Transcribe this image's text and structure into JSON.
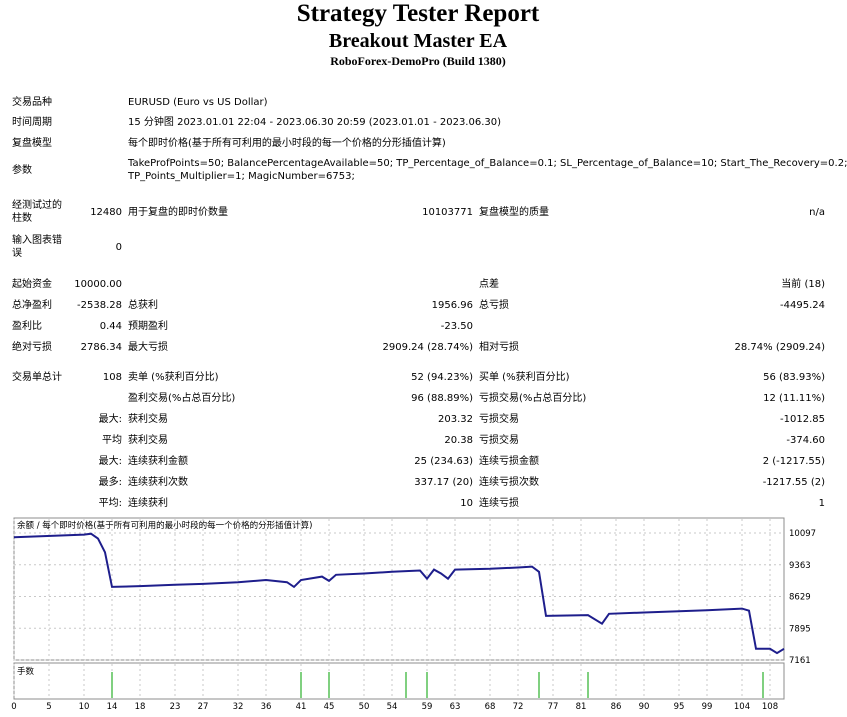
{
  "header": {
    "title": "Strategy Tester Report",
    "ea_name": "Breakout Master EA",
    "server": "RoboForex-DemoPro (Build 1380)"
  },
  "info": {
    "symbol_label": "交易品种",
    "symbol_value": "EURUSD (Euro vs US Dollar)",
    "period_label": "时间周期",
    "period_value": "15 分钟图 2023.01.01 22:04 - 2023.06.30 20:59 (2023.01.01 - 2023.06.30)",
    "model_label": "复盘模型",
    "model_value": "每个即时价格(基于所有可利用的最小时段的每一个价格的分形插值计算)",
    "params_label": "参数",
    "params_line1": "TakeProfPoints=50; BalancePercentageAvailable=50; TP_Percentage_of_Balance=0.1; SL_Percentage_of_Balance=10; Start_The_Recovery=0.2;",
    "params_line2": "TP_Points_Multiplier=1; MagicNumber=6753;"
  },
  "quality": {
    "bars_label_1": "经测试过的",
    "bars_label_2": "柱数",
    "bars_value": "12480",
    "ticks_label": "用于复盘的即时价数量",
    "ticks_value": "10103771",
    "quality_label": "复盘模型的质量",
    "quality_value": "n/a",
    "errors_label_1": "输入图表错",
    "errors_label_2": "误",
    "errors_value": "0"
  },
  "results": {
    "deposit_label": "起始资金",
    "deposit_value": "10000.00",
    "spread_label": "点差",
    "spread_value": "当前 (18)",
    "net_label": "总净盈利",
    "net_value": "-2538.28",
    "gross_profit_label": "总获利",
    "gross_profit_value": "1956.96",
    "gross_loss_label": "总亏损",
    "gross_loss_value": "-4495.24",
    "pf_label": "盈利比",
    "pf_value": "0.44",
    "expected_label": "预期盈利",
    "expected_value": "-23.50",
    "abs_dd_label": "绝对亏损",
    "abs_dd_value": "2786.34",
    "max_dd_label": "最大亏损",
    "max_dd_value": "2909.24 (28.74%)",
    "rel_dd_label": "相对亏损",
    "rel_dd_value": "28.74% (2909.24)"
  },
  "trades": {
    "total_label": "交易单总计",
    "total_value": "108",
    "short_label": "卖单 (%获利百分比)",
    "short_value": "52 (94.23%)",
    "long_label": "买单 (%获利百分比)",
    "long_value": "56 (83.93%)",
    "profit_trades_label": "盈利交易(%占总百分比)",
    "profit_trades_value": "96 (88.89%)",
    "loss_trades_label": "亏损交易(%占总百分比)",
    "loss_trades_value": "12 (11.11%)",
    "largest_prefix": "最大:",
    "largest_profit_label": "获利交易",
    "largest_profit_value": "203.32",
    "largest_loss_label": "亏损交易",
    "largest_loss_value": "-1012.85",
    "avg_prefix": "平均",
    "avg_profit_label": "获利交易",
    "avg_profit_value": "20.38",
    "avg_loss_label": "亏损交易",
    "avg_loss_value": "-374.60",
    "max_prefix": "最大:",
    "max_cons_wins_label": "连续获利金额",
    "max_cons_wins_value": "25 (234.63)",
    "max_cons_losses_label": "连续亏损金额",
    "max_cons_losses_value": "2 (-1217.55)",
    "maximal_prefix": "最多:",
    "maximal_cons_profit_label": "连续获利次数",
    "maximal_cons_profit_value": "337.17 (20)",
    "maximal_cons_loss_label": "连续亏损次数",
    "maximal_cons_loss_value": "-1217.55 (2)",
    "avgcons_prefix": "平均:",
    "avg_cons_wins_label": "连续获利",
    "avg_cons_wins_value": "10",
    "avg_cons_losses_label": "连续亏损",
    "avg_cons_losses_value": "1"
  },
  "chart_data": {
    "type": "line",
    "title": "余额 / 每个即时价格(基于所有可利用的最小时段的每一个价格的分形插值计算)",
    "volume_label": "手数",
    "ylim": [
      7161,
      10097
    ],
    "yticks": [
      "10097",
      "9363",
      "8629",
      "7895",
      "7161"
    ],
    "xlim": [
      0,
      110
    ],
    "xticks": [
      "0",
      "5",
      "10",
      "14",
      "18",
      "23",
      "27",
      "32",
      "36",
      "41",
      "45",
      "50",
      "54",
      "59",
      "63",
      "68",
      "72",
      "77",
      "81",
      "86",
      "90",
      "95",
      "99",
      "104",
      "108"
    ],
    "line_color": "#1e1e8c",
    "volume_color": "#00a000",
    "series": [
      {
        "values": [
          [
            0,
            10000
          ],
          [
            10,
            10060
          ],
          [
            11,
            10080
          ],
          [
            12,
            9970
          ],
          [
            13,
            9650
          ],
          [
            14,
            8850
          ],
          [
            18,
            8870
          ],
          [
            23,
            8900
          ],
          [
            27,
            8920
          ],
          [
            32,
            8960
          ],
          [
            36,
            9010
          ],
          [
            39,
            8960
          ],
          [
            40,
            8850
          ],
          [
            41,
            9010
          ],
          [
            44,
            9090
          ],
          [
            45,
            8990
          ],
          [
            46,
            9130
          ],
          [
            50,
            9160
          ],
          [
            54,
            9200
          ],
          [
            58,
            9230
          ],
          [
            59,
            9040
          ],
          [
            60,
            9250
          ],
          [
            61,
            9160
          ],
          [
            62,
            9040
          ],
          [
            63,
            9250
          ],
          [
            68,
            9270
          ],
          [
            72,
            9300
          ],
          [
            74,
            9320
          ],
          [
            75,
            9200
          ],
          [
            76,
            8180
          ],
          [
            79,
            8190
          ],
          [
            82,
            8200
          ],
          [
            84,
            8000
          ],
          [
            85,
            8230
          ],
          [
            90,
            8260
          ],
          [
            95,
            8290
          ],
          [
            99,
            8310
          ],
          [
            104,
            8350
          ],
          [
            105,
            8300
          ],
          [
            106,
            7420
          ],
          [
            108,
            7420
          ],
          [
            109,
            7320
          ],
          [
            110,
            7420
          ]
        ]
      }
    ],
    "volume_bars": [
      14,
      41,
      45,
      56,
      59,
      75,
      82,
      107
    ]
  }
}
